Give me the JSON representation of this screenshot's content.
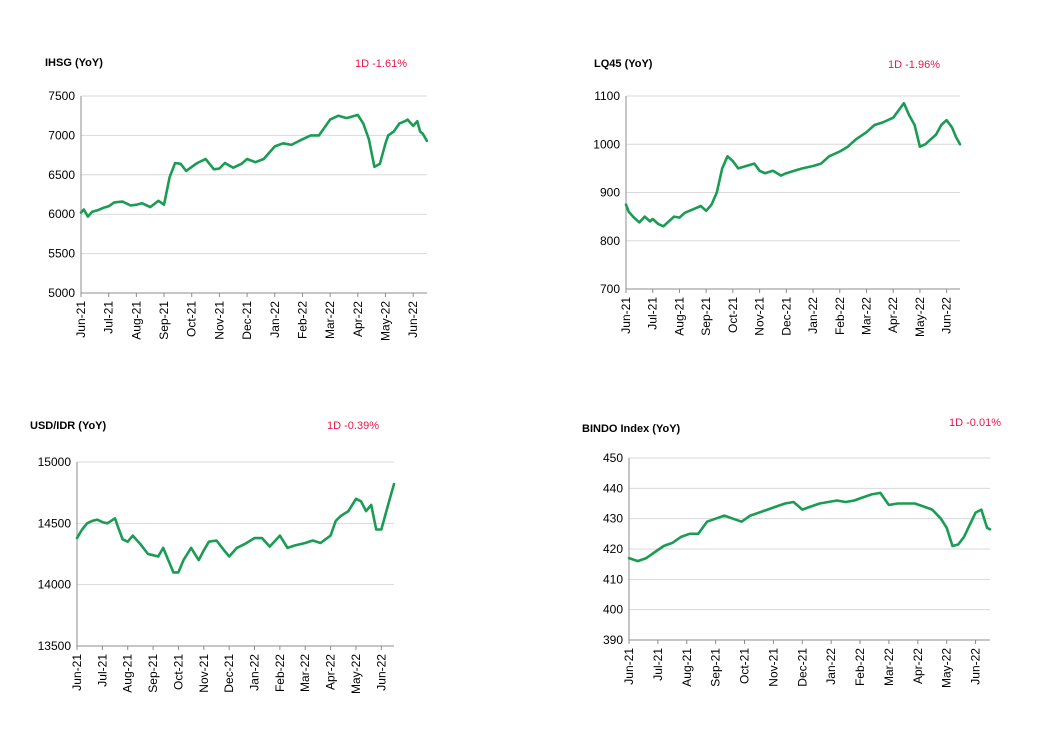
{
  "chart_data": [
    {
      "type": "line",
      "title": "IHSG (YoY)",
      "change": "1D -1.61%",
      "ylim": [
        5000,
        7500
      ],
      "yticks": [
        5000,
        5500,
        6000,
        6500,
        7000,
        7500
      ],
      "xticks": [
        "Jun-21",
        "Jul-21",
        "Aug-21",
        "Sep-21",
        "Oct-21",
        "Nov-21",
        "Dec-21",
        "Jan-22",
        "Feb-22",
        "Mar-22",
        "Apr-22",
        "May-22",
        "Jun-22"
      ],
      "grid": "horizontal",
      "color": "#1a9c54",
      "series": [
        {
          "x": [
            0,
            0.1,
            0.25,
            0.4,
            0.6,
            0.8,
            1,
            1.2,
            1.5,
            1.8,
            2,
            2.2,
            2.5,
            2.8,
            3,
            3.2,
            3.4,
            3.6,
            3.8,
            4,
            4.2,
            4.5,
            4.8,
            5,
            5.2,
            5.5,
            5.8,
            6,
            6.3,
            6.6,
            7,
            7.3,
            7.6,
            8,
            8.3,
            8.6,
            9,
            9.3,
            9.6,
            10,
            10.2,
            10.4,
            10.6,
            10.8,
            11,
            11.1,
            11.3,
            11.5,
            11.7,
            11.8,
            12,
            12.15,
            12.25,
            12.35,
            12.45,
            12.5
          ],
          "values": [
            6020,
            6060,
            5970,
            6030,
            6050,
            6080,
            6100,
            6150,
            6160,
            6110,
            6120,
            6140,
            6090,
            6170,
            6120,
            6470,
            6650,
            6640,
            6550,
            6600,
            6650,
            6700,
            6570,
            6580,
            6650,
            6590,
            6640,
            6700,
            6660,
            6700,
            6860,
            6900,
            6880,
            6950,
            7000,
            7000,
            7200,
            7250,
            7220,
            7260,
            7150,
            6950,
            6600,
            6640,
            6900,
            7000,
            7050,
            7150,
            7180,
            7200,
            7120,
            7180,
            7050,
            7020,
            6960,
            6930
          ]
        }
      ]
    },
    {
      "type": "line",
      "title": "LQ45 (YoY)",
      "change": "1D -1.96%",
      "ylim": [
        700,
        1100
      ],
      "yticks": [
        700,
        800,
        900,
        1000,
        1100
      ],
      "xticks": [
        "Jun-21",
        "Jul-21",
        "Aug-21",
        "Sep-21",
        "Oct-21",
        "Nov-21",
        "Dec-21",
        "Jan-22",
        "Feb-22",
        "Mar-22",
        "Apr-22",
        "May-22",
        "Jun-22"
      ],
      "grid": "horizontal",
      "color": "#1a9c54",
      "series": [
        {
          "x": [
            0,
            0.1,
            0.3,
            0.5,
            0.7,
            0.9,
            1,
            1.2,
            1.4,
            1.6,
            1.8,
            2,
            2.2,
            2.5,
            2.8,
            3,
            3.2,
            3.4,
            3.6,
            3.8,
            4,
            4.2,
            4.5,
            4.8,
            5,
            5.2,
            5.5,
            5.8,
            6,
            6.3,
            6.6,
            7,
            7.3,
            7.6,
            8,
            8.3,
            8.6,
            9,
            9.3,
            9.6,
            10,
            10.2,
            10.4,
            10.6,
            10.8,
            11,
            11.2,
            11.4,
            11.6,
            11.8,
            12,
            12.2,
            12.35,
            12.5
          ],
          "values": [
            875,
            860,
            848,
            838,
            850,
            840,
            845,
            835,
            830,
            840,
            850,
            848,
            858,
            865,
            872,
            862,
            875,
            900,
            950,
            975,
            965,
            950,
            955,
            960,
            945,
            940,
            945,
            935,
            940,
            945,
            950,
            955,
            960,
            975,
            985,
            995,
            1010,
            1025,
            1040,
            1045,
            1055,
            1070,
            1085,
            1060,
            1040,
            995,
            1000,
            1010,
            1020,
            1040,
            1050,
            1035,
            1015,
            1000
          ]
        }
      ]
    },
    {
      "type": "line",
      "title": "USD/IDR  (YoY)",
      "change": "1D -0.39%",
      "ylim": [
        13500,
        15000
      ],
      "yticks": [
        13500,
        14000,
        14500,
        15000
      ],
      "xticks": [
        "Jun-21",
        "Jul-21",
        "Aug-21",
        "Sep-21",
        "Oct-21",
        "Nov-21",
        "Dec-21",
        "Jan-22",
        "Feb-22",
        "Mar-22",
        "Apr-22",
        "May-22",
        "Jun-22"
      ],
      "grid": "horizontal",
      "color": "#1a9c54",
      "series": [
        {
          "x": [
            0,
            0.2,
            0.4,
            0.6,
            0.8,
            1,
            1.2,
            1.5,
            1.6,
            1.8,
            2,
            2.2,
            2.5,
            2.8,
            3,
            3.2,
            3.4,
            3.6,
            3.8,
            4,
            4.2,
            4.5,
            4.8,
            5,
            5.2,
            5.5,
            5.8,
            6,
            6.3,
            6.6,
            7,
            7.3,
            7.6,
            8,
            8.3,
            8.6,
            9,
            9.3,
            9.6,
            10,
            10.2,
            10.4,
            10.7,
            11,
            11.2,
            11.4,
            11.6,
            11.8,
            12,
            12.2,
            12.4,
            12.5
          ],
          "values": [
            14380,
            14450,
            14500,
            14520,
            14530,
            14510,
            14500,
            14540,
            14480,
            14370,
            14350,
            14400,
            14330,
            14250,
            14240,
            14230,
            14300,
            14200,
            14100,
            14100,
            14200,
            14300,
            14200,
            14280,
            14350,
            14360,
            14280,
            14230,
            14300,
            14330,
            14380,
            14380,
            14310,
            14400,
            14300,
            14320,
            14340,
            14360,
            14340,
            14400,
            14520,
            14560,
            14600,
            14700,
            14680,
            14600,
            14650,
            14450,
            14450,
            14600,
            14750,
            14820
          ]
        }
      ]
    },
    {
      "type": "line",
      "title": "BINDO Index (YoY)",
      "change": "1D -0.01%",
      "ylim": [
        390,
        450
      ],
      "yticks": [
        390,
        400,
        410,
        420,
        430,
        440,
        450
      ],
      "xticks": [
        "Jun-21",
        "Jul-21",
        "Aug-21",
        "Sep-21",
        "Oct-21",
        "Nov-21",
        "Dec-21",
        "Jan-22",
        "Feb-22",
        "Mar-22",
        "Apr-22",
        "May-22",
        "Jun-22"
      ],
      "grid": "horizontal",
      "color": "#1a9c54",
      "series": [
        {
          "x": [
            0,
            0.3,
            0.6,
            0.9,
            1.2,
            1.5,
            1.8,
            2.1,
            2.4,
            2.7,
            3,
            3.3,
            3.6,
            3.9,
            4.2,
            4.5,
            4.8,
            5.1,
            5.4,
            5.7,
            6,
            6.3,
            6.6,
            6.9,
            7.2,
            7.5,
            7.8,
            8.1,
            8.4,
            8.7,
            9,
            9.3,
            9.6,
            9.9,
            10.2,
            10.5,
            10.8,
            11,
            11.2,
            11.4,
            11.6,
            11.8,
            12,
            12.2,
            12.4,
            12.5
          ],
          "values": [
            417,
            416,
            417,
            419,
            421,
            422,
            424,
            425,
            425,
            429,
            430,
            431,
            430,
            429,
            431,
            432,
            433,
            434,
            435,
            435.5,
            433,
            434,
            435,
            435.5,
            436,
            435.5,
            436,
            437,
            438,
            438.5,
            434.5,
            435,
            435,
            435,
            434,
            433,
            430,
            427,
            421,
            421.5,
            424,
            428,
            432,
            433,
            427,
            426.5
          ]
        }
      ]
    }
  ]
}
